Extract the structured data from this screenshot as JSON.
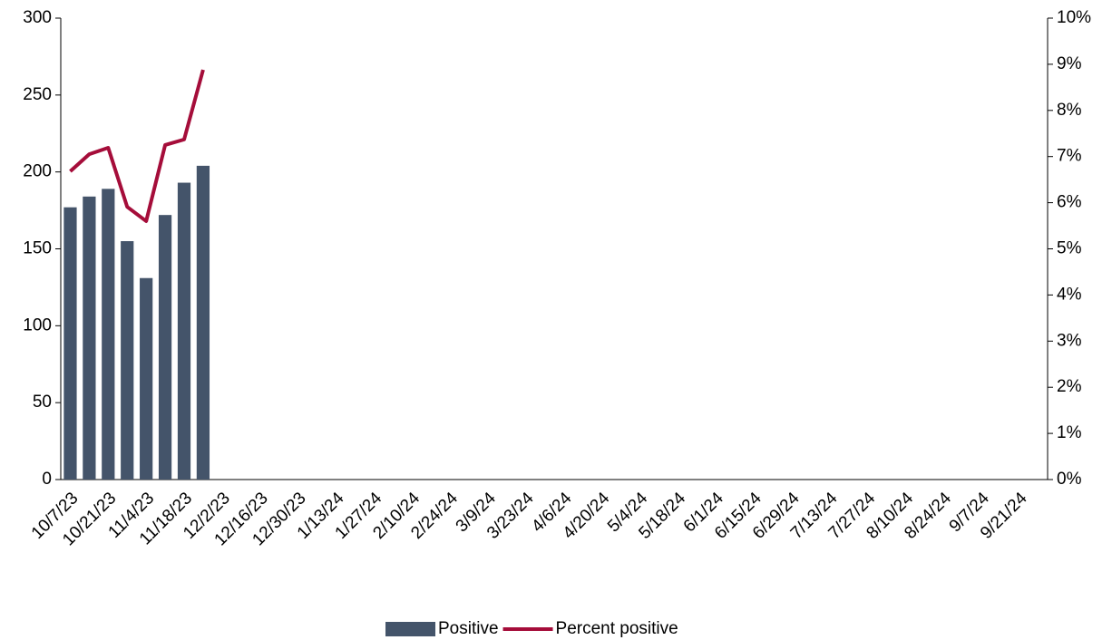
{
  "chart_data": {
    "type": "bar-line",
    "categories": [
      "10/7/23",
      null,
      "10/21/23",
      null,
      "11/4/23",
      null,
      "11/18/23",
      null,
      "12/2/23",
      null,
      "12/16/23",
      null,
      "12/30/23",
      null,
      "1/13/24",
      null,
      "1/27/24",
      null,
      "2/10/24",
      null,
      "2/24/24",
      null,
      "3/9/24",
      null,
      "3/23/24",
      null,
      "4/6/24",
      null,
      "4/20/24",
      null,
      "5/4/24",
      null,
      "5/18/24",
      null,
      "6/1/24",
      null,
      "6/15/24",
      null,
      "6/29/24",
      null,
      "7/13/24",
      null,
      "7/27/24",
      null,
      "8/10/24",
      null,
      "8/24/24",
      null,
      "9/7/24",
      null,
      "9/21/24",
      null
    ],
    "series": [
      {
        "name": "Positive",
        "type": "bar",
        "color": "#44546a",
        "values": [
          177,
          184,
          189,
          155,
          131,
          172,
          193,
          204,
          null,
          null,
          null,
          null,
          null,
          null,
          null,
          null,
          null,
          null,
          null,
          null,
          null,
          null,
          null,
          null,
          null,
          null,
          null,
          null,
          null,
          null,
          null,
          null,
          null,
          null,
          null,
          null,
          null,
          null,
          null,
          null,
          null,
          null,
          null,
          null,
          null,
          null,
          null,
          null,
          null,
          null,
          null,
          null
        ]
      },
      {
        "name": "Percent positive",
        "type": "line",
        "axis": "y2",
        "color": "#a50d3a",
        "values": [
          6.68,
          7.05,
          7.19,
          5.91,
          5.6,
          7.25,
          7.37,
          8.88,
          null,
          null,
          null,
          null,
          null,
          null,
          null,
          null,
          null,
          null,
          null,
          null,
          null,
          null,
          null,
          null,
          null,
          null,
          null,
          null,
          null,
          null,
          null,
          null,
          null,
          null,
          null,
          null,
          null,
          null,
          null,
          null,
          null,
          null,
          null,
          null,
          null,
          null,
          null,
          null,
          null,
          null,
          null,
          null
        ]
      }
    ],
    "ylim": [
      0,
      300
    ],
    "yticks": [
      0,
      50,
      100,
      150,
      200,
      250,
      300
    ],
    "y2lim": [
      0,
      10
    ],
    "y2ticks": [
      {
        "value": 0,
        "label": "0%"
      },
      {
        "value": 1,
        "label": "1%"
      },
      {
        "value": 2,
        "label": "2%"
      },
      {
        "value": 3,
        "label": "3%"
      },
      {
        "value": 4,
        "label": "4%"
      },
      {
        "value": 5,
        "label": "5%"
      },
      {
        "value": 6,
        "label": "6%"
      },
      {
        "value": 7,
        "label": "7%"
      },
      {
        "value": 8,
        "label": "8%"
      },
      {
        "value": 9,
        "label": "9%"
      },
      {
        "value": 10,
        "label": "10%"
      }
    ],
    "grid": false,
    "legend": "bottom"
  }
}
